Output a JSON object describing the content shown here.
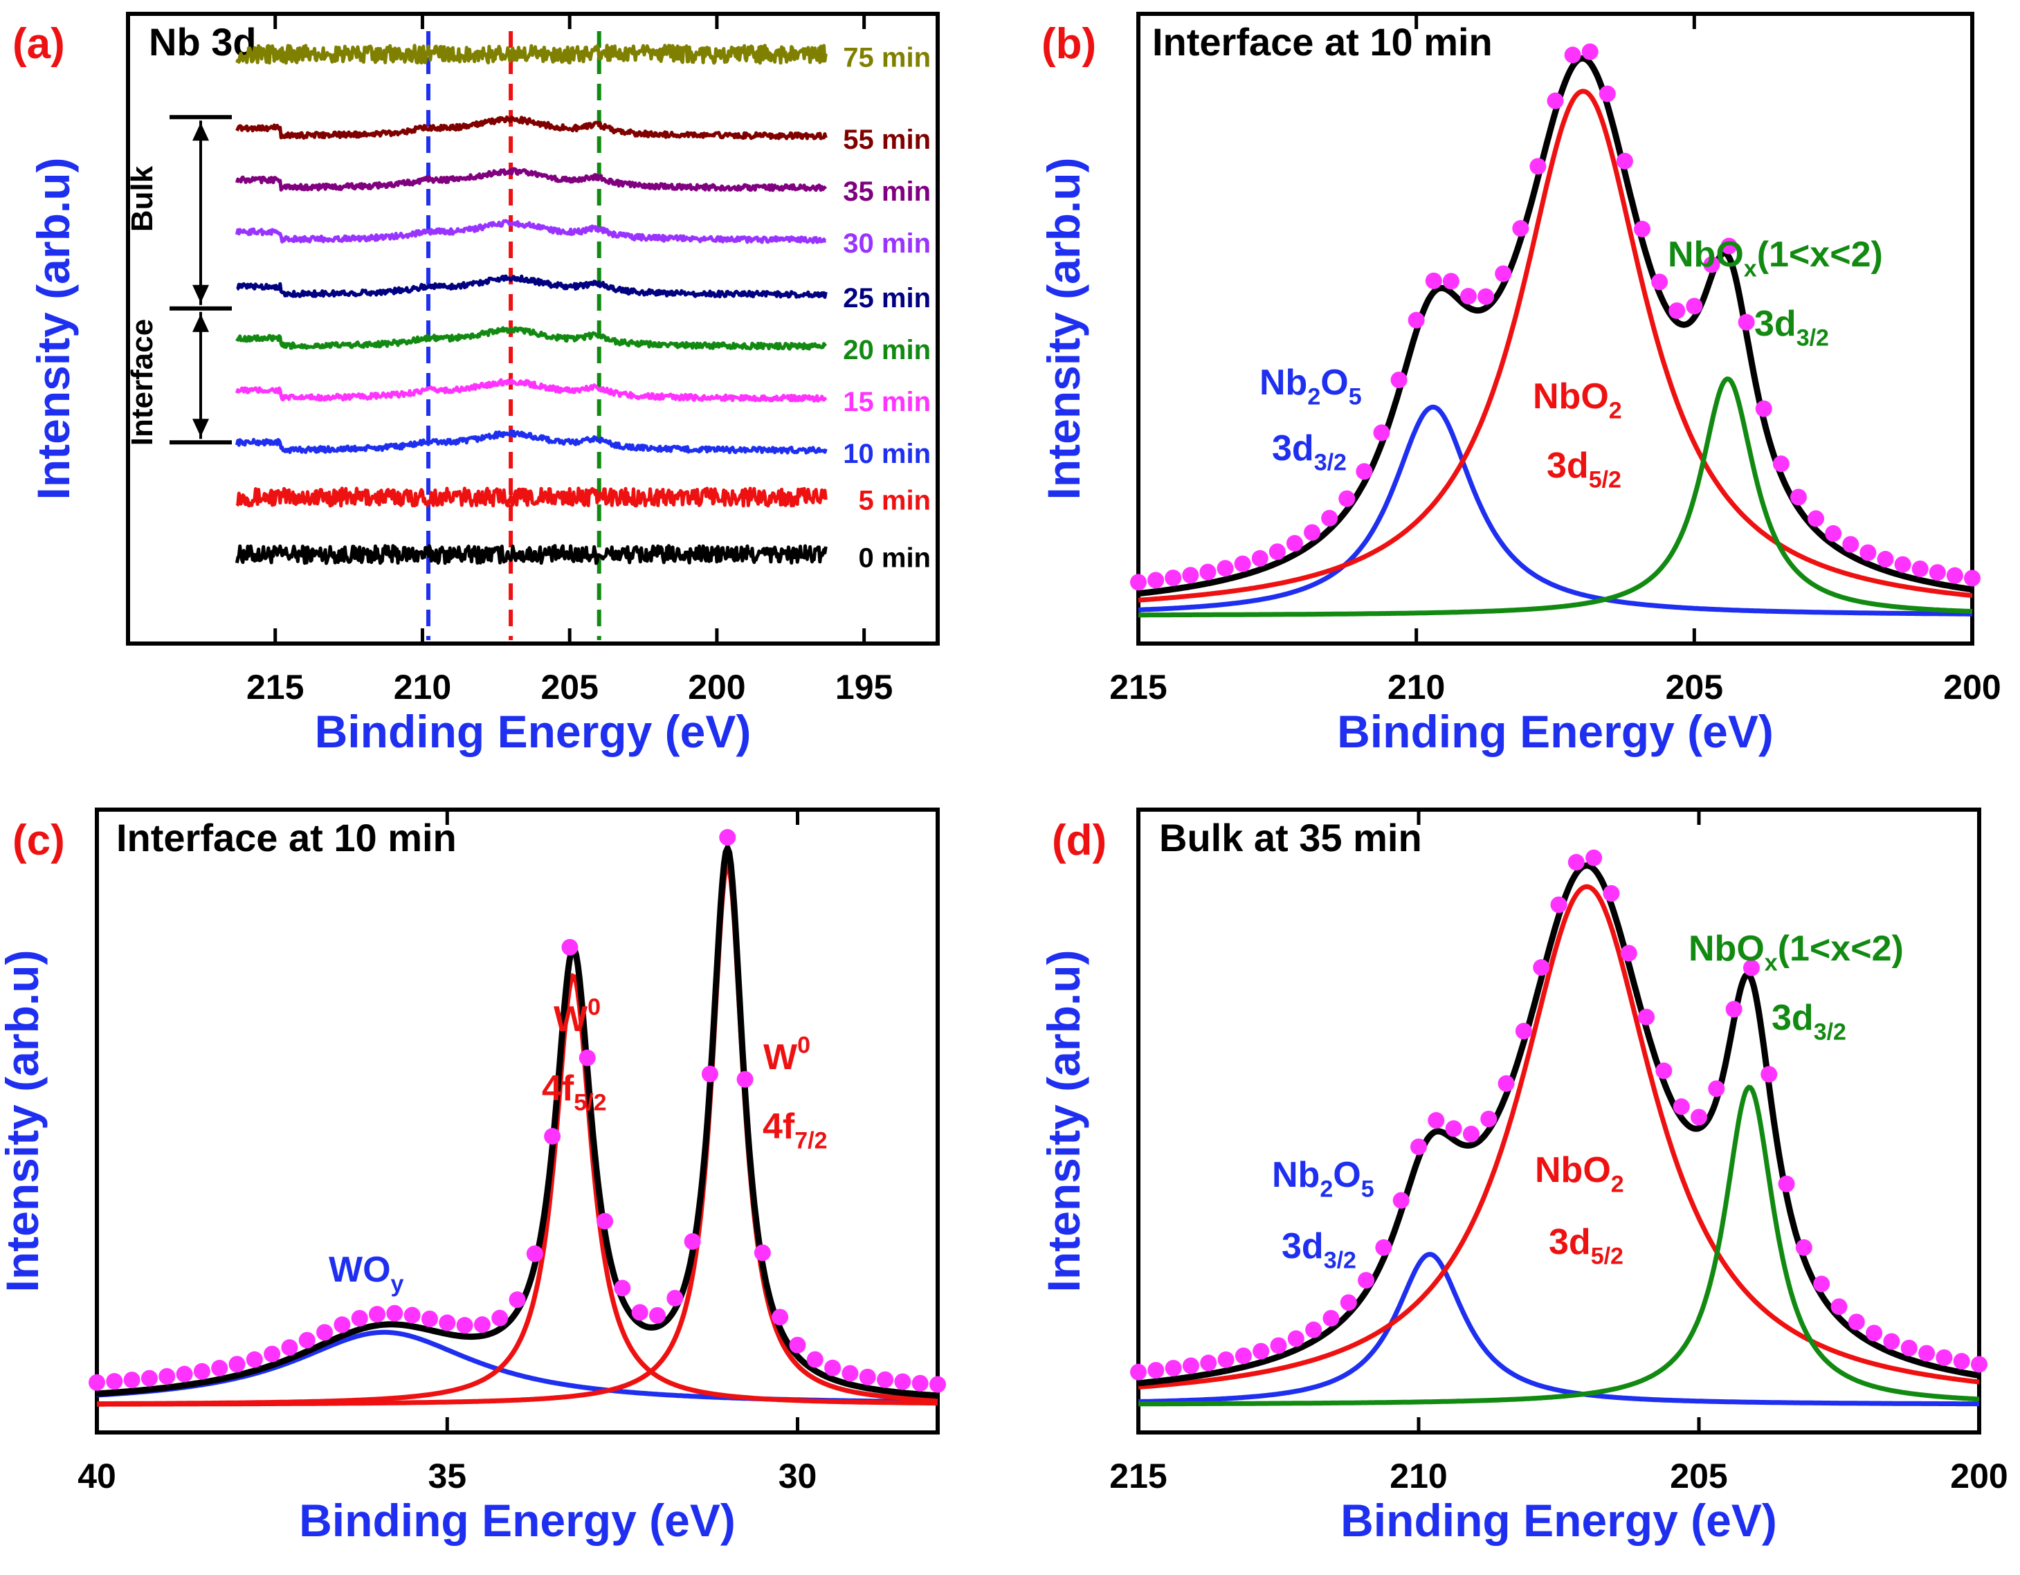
{
  "colors": {
    "blue": "#1e2ff0",
    "red": "#ee1111",
    "green": "#128a12",
    "magenta": "#ff33ff",
    "black": "#000000"
  },
  "chart_data": [
    {
      "id": "a",
      "type": "line",
      "panel_label": "(a)",
      "title": "Nb 3d",
      "xlabel": "Binding Energy (eV)",
      "ylabel": "Intensity (arb.u)",
      "xlim": [
        220,
        192.5
      ],
      "xticks": [
        215,
        210,
        205,
        200,
        195
      ],
      "x_range": [
        216.3,
        196.3
      ],
      "ylim": [
        0,
        100
      ],
      "vlines": [
        {
          "x": 209.8,
          "color": "#1e2ff0"
        },
        {
          "x": 207.0,
          "color": "#ee1111"
        },
        {
          "x": 204.0,
          "color": "#128a12"
        }
      ],
      "annotations": [
        {
          "text": "Bulk"
        },
        {
          "text": "Interface"
        }
      ],
      "series": [
        {
          "name": "0 min",
          "label": "0 min",
          "color": "#000000",
          "baseline": 12.5,
          "noise": 1.6,
          "profile": "noise"
        },
        {
          "name": "5 min",
          "label": "5 min",
          "color": "#ee1111",
          "baseline": 23.0,
          "noise": 1.6,
          "profile": "noise"
        },
        {
          "name": "10 min",
          "label": "10 min",
          "color": "#1e2ff0",
          "baseline": 31.5,
          "noise": 0.5,
          "profile": "nb"
        },
        {
          "name": "15 min",
          "label": "15 min",
          "color": "#ff33ff",
          "baseline": 41.0,
          "noise": 0.5,
          "profile": "nb"
        },
        {
          "name": "20 min",
          "label": "20 min",
          "color": "#128a12",
          "baseline": 50.5,
          "noise": 0.5,
          "profile": "nb"
        },
        {
          "name": "25 min",
          "label": "25 min",
          "color": "#000080",
          "baseline": 60.0,
          "noise": 0.5,
          "profile": "nb"
        },
        {
          "name": "30 min",
          "label": "30 min",
          "color": "#9933ff",
          "baseline": 70.0,
          "noise": 0.5,
          "profile": "nb"
        },
        {
          "name": "35 min",
          "label": "35 min",
          "color": "#800080",
          "baseline": 79.5,
          "noise": 0.5,
          "profile": "nb"
        },
        {
          "name": "55 min",
          "label": "55 min",
          "color": "#800000",
          "baseline": 89.0,
          "noise": 0.5,
          "profile": "nb"
        },
        {
          "name": "75 min",
          "label": "75 min",
          "color": "#808000",
          "baseline": 104.0,
          "noise": 1.6,
          "profile": "noise"
        }
      ]
    },
    {
      "id": "b",
      "type": "line",
      "panel_label": "(b)",
      "title": "Interface at 10 min",
      "xlabel": "Binding Energy (eV)",
      "ylabel": "Intensity (arb.u)",
      "xlim": [
        215,
        200
      ],
      "xticks": [
        215,
        210,
        205,
        200
      ],
      "ylim": [
        0,
        100
      ],
      "background": 0,
      "peaks": [
        {
          "name": "Nb2O5 3d3/2",
          "color": "#1e2ff0",
          "center": 209.7,
          "height": 37,
          "width": 0.9
        },
        {
          "name": "NbO2 3d5/2",
          "color": "#ee1111",
          "center": 207.0,
          "height": 93,
          "width": 1.4
        },
        {
          "name": "NbOx 3d3/2",
          "color": "#128a12",
          "center": 204.4,
          "height": 42,
          "width": 0.6
        }
      ],
      "labels": [
        {
          "main": "Nb",
          "sub": "2",
          "main2": "O",
          "sub2": "5",
          "color": "#1e2ff0"
        },
        {
          "main": "3d",
          "sub": "3/2",
          "color": "#1e2ff0"
        },
        {
          "main": "NbO",
          "sub": "2",
          "color": "#ee1111"
        },
        {
          "main": "3d",
          "sub": "5/2",
          "color": "#ee1111"
        },
        {
          "main": "NbO",
          "sub": "x",
          "tail": "(1<x<2)",
          "color": "#128a12"
        },
        {
          "main": "3d",
          "sub": "3/2",
          "color": "#128a12"
        }
      ]
    },
    {
      "id": "c",
      "type": "line",
      "panel_label": "(c)",
      "title": "Interface at 10 min",
      "xlabel": "Binding Energy (eV)",
      "ylabel": "Intensity (arb.u)",
      "xlim": [
        40,
        28
      ],
      "xticks": [
        40,
        35,
        30
      ],
      "ylim": [
        0,
        100
      ],
      "background": 0,
      "peaks": [
        {
          "name": "WOy",
          "color": "#1e2ff0",
          "center": 35.9,
          "height": 13,
          "width": 1.6
        },
        {
          "name": "W0 4f5/2",
          "color": "#ee1111",
          "center": 33.2,
          "height": 77,
          "width": 0.32
        },
        {
          "name": "W0 4f7/2",
          "color": "#ee1111",
          "center": 31.0,
          "height": 97,
          "width": 0.28
        }
      ],
      "labels": [
        {
          "main": "WO",
          "sub": "y",
          "color": "#1e2ff0"
        },
        {
          "main": "W",
          "sup": "0",
          "color": "#ee1111"
        },
        {
          "main": "4f",
          "sub": "5/2",
          "color": "#ee1111"
        },
        {
          "main": "W",
          "sup": "0",
          "color": "#ee1111"
        },
        {
          "main": "4f",
          "sub": "7/2",
          "color": "#ee1111"
        }
      ]
    },
    {
      "id": "d",
      "type": "line",
      "panel_label": "(d)",
      "title": "Bulk at 35 min",
      "xlabel": "Binding Energy (eV)",
      "ylabel": "Intensity (arb.u)",
      "xlim": [
        215,
        200
      ],
      "xticks": [
        215,
        210,
        205,
        200
      ],
      "ylim": [
        0,
        100
      ],
      "background": 0,
      "peaks": [
        {
          "name": "Nb2O5 3d3/2",
          "color": "#1e2ff0",
          "center": 209.8,
          "height": 27,
          "width": 0.75
        },
        {
          "name": "NbO2 3d5/2",
          "color": "#ee1111",
          "center": 207.0,
          "height": 93,
          "width": 1.5
        },
        {
          "name": "NbOx 3d3/2",
          "color": "#128a12",
          "center": 204.1,
          "height": 57,
          "width": 0.55
        }
      ],
      "labels": [
        {
          "main": "Nb",
          "sub": "2",
          "main2": "O",
          "sub2": "5",
          "color": "#1e2ff0"
        },
        {
          "main": "3d",
          "sub": "3/2",
          "color": "#1e2ff0"
        },
        {
          "main": "NbO",
          "sub": "2",
          "color": "#ee1111"
        },
        {
          "main": "3d",
          "sub": "5/2",
          "color": "#ee1111"
        },
        {
          "main": "NbO",
          "sub": "x",
          "tail": "(1<x<2)",
          "color": "#128a12"
        },
        {
          "main": "3d",
          "sub": "3/2",
          "color": "#128a12"
        }
      ]
    }
  ]
}
